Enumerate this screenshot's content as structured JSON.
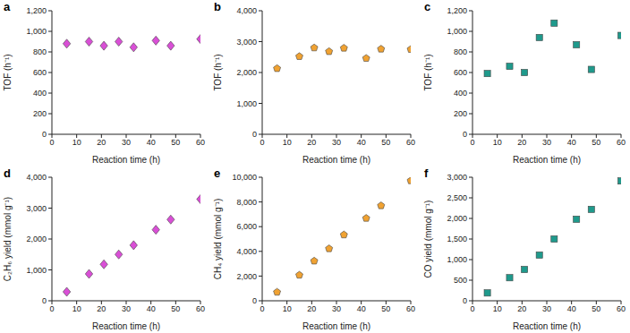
{
  "chart_data": [
    {
      "type": "scatter",
      "title": "a",
      "x_label": "Reaction time (h)",
      "y_label": "TOF (h⁻¹)",
      "x": [
        6,
        15,
        21,
        27,
        33,
        42,
        48,
        60
      ],
      "values": [
        880,
        900,
        860,
        900,
        845,
        910,
        860,
        925
      ],
      "color": "#d94fd6",
      "marker": "diamond",
      "xlim": [
        0,
        60
      ],
      "xticks": [
        0,
        10,
        20,
        30,
        40,
        50,
        60
      ],
      "ylim": [
        0,
        1200
      ],
      "yticks": [
        0,
        200,
        400,
        600,
        800,
        {
          "value": 1000,
          "label": "1,000"
        },
        {
          "value": 1200,
          "label": "1,200"
        }
      ],
      "grid": false
    },
    {
      "type": "scatter",
      "title": "b",
      "x_label": "Reaction time (h)",
      "y_label": "TOF (h⁻¹)",
      "x": [
        6,
        15,
        21,
        27,
        33,
        42,
        48,
        60
      ],
      "values": [
        2130,
        2520,
        2800,
        2680,
        2790,
        2460,
        2760,
        2750
      ],
      "color": "#f0a232",
      "marker": "pentagon",
      "xlim": [
        0,
        60
      ],
      "xticks": [
        0,
        10,
        20,
        30,
        40,
        50,
        60
      ],
      "ylim": [
        0,
        4000
      ],
      "yticks": [
        0,
        {
          "value": 1000,
          "label": "1,000"
        },
        {
          "value": 2000,
          "label": "2,000"
        },
        {
          "value": 3000,
          "label": "3,000"
        },
        {
          "value": 4000,
          "label": "4,000"
        }
      ],
      "grid": false
    },
    {
      "type": "scatter",
      "title": "c",
      "x_label": "Reaction time (h)",
      "y_label": "TOF (h⁻¹)",
      "x": [
        6,
        15,
        21,
        27,
        33,
        42,
        48,
        60
      ],
      "values": [
        590,
        660,
        600,
        940,
        1080,
        870,
        630,
        960
      ],
      "color": "#1f9a8c",
      "marker": "square",
      "xlim": [
        0,
        60
      ],
      "xticks": [
        0,
        10,
        20,
        30,
        40,
        50,
        60
      ],
      "ylim": [
        0,
        1200
      ],
      "yticks": [
        0,
        200,
        400,
        600,
        800,
        {
          "value": 1000,
          "label": "1,000"
        },
        {
          "value": 1200,
          "label": "1,200"
        }
      ],
      "grid": false
    },
    {
      "type": "scatter",
      "title": "d",
      "x_label": "Reaction time (h)",
      "y_label": "C₂H₆ yield (mmol g⁻¹)",
      "x": [
        6,
        15,
        21,
        27,
        33,
        42,
        48,
        60
      ],
      "values": [
        290,
        870,
        1180,
        1500,
        1800,
        2300,
        2630,
        3290
      ],
      "color": "#d94fd6",
      "marker": "diamond",
      "xlim": [
        0,
        60
      ],
      "xticks": [
        0,
        10,
        20,
        30,
        40,
        50,
        60
      ],
      "ylim": [
        0,
        4000
      ],
      "yticks": [
        0,
        {
          "value": 1000,
          "label": "1,000"
        },
        {
          "value": 2000,
          "label": "2,000"
        },
        {
          "value": 3000,
          "label": "3,000"
        },
        {
          "value": 4000,
          "label": "4,000"
        }
      ],
      "grid": false
    },
    {
      "type": "scatter",
      "title": "e",
      "x_label": "Reaction time (h)",
      "y_label": "CH₄ yield (mmol g⁻¹)",
      "x": [
        6,
        15,
        21,
        27,
        33,
        42,
        48,
        60
      ],
      "values": [
        700,
        2080,
        3220,
        4220,
        5340,
        6680,
        7700,
        9720
      ],
      "color": "#f0a232",
      "marker": "pentagon",
      "xlim": [
        0,
        60
      ],
      "xticks": [
        0,
        10,
        20,
        30,
        40,
        50,
        60
      ],
      "ylim": [
        0,
        10000
      ],
      "yticks": [
        0,
        {
          "value": 2000,
          "label": "2,000"
        },
        {
          "value": 4000,
          "label": "4,000"
        },
        {
          "value": 6000,
          "label": "6,000"
        },
        {
          "value": 8000,
          "label": "8,000"
        },
        {
          "value": 10000,
          "label": "10,000"
        }
      ],
      "grid": false
    },
    {
      "type": "scatter",
      "title": "f",
      "x_label": "Reaction time (h)",
      "y_label": "CO yield (mmol g⁻¹)",
      "x": [
        6,
        15,
        21,
        27,
        33,
        42,
        48,
        60
      ],
      "values": [
        190,
        560,
        760,
        1110,
        1500,
        1980,
        2220,
        2910
      ],
      "color": "#1f9a8c",
      "marker": "square",
      "xlim": [
        0,
        60
      ],
      "xticks": [
        0,
        10,
        20,
        30,
        40,
        50,
        60
      ],
      "ylim": [
        0,
        3000
      ],
      "yticks": [
        0,
        {
          "value": 500,
          "label": "500"
        },
        {
          "value": 1000,
          "label": "1,000"
        },
        {
          "value": 1500,
          "label": "1,500"
        },
        {
          "value": 2000,
          "label": "2,000"
        },
        {
          "value": 2500,
          "label": "2,500"
        },
        {
          "value": 3000,
          "label": "3,000"
        }
      ],
      "grid": false
    }
  ]
}
